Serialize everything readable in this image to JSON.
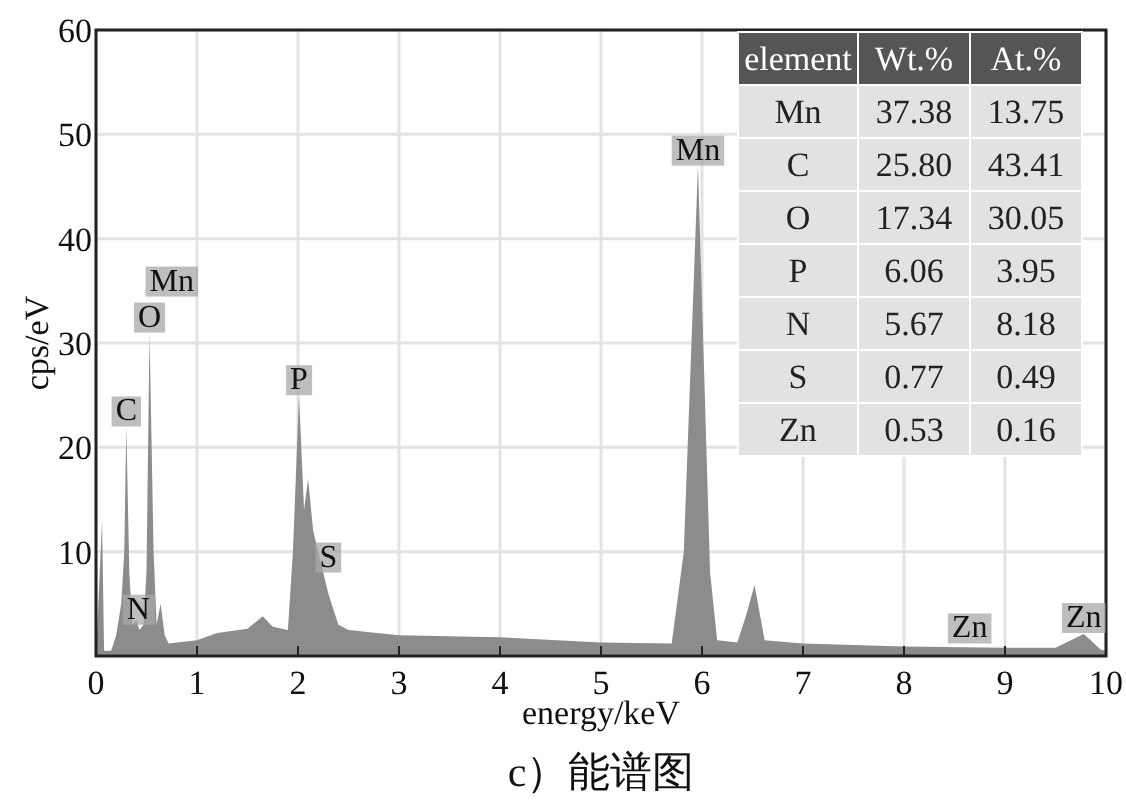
{
  "chart_data": {
    "type": "area",
    "title": "c）能谱图",
    "xlabel": "energy/keV",
    "ylabel": "cps/eV",
    "color": "#8c8c8c",
    "x": [
      0,
      0.06,
      0.08,
      0.15,
      0.2,
      0.25,
      0.28,
      0.3,
      0.33,
      0.36,
      0.4,
      0.43,
      0.47,
      0.5,
      0.53,
      0.57,
      0.6,
      0.64,
      0.68,
      0.72,
      1.0,
      1.2,
      1.5,
      1.65,
      1.75,
      1.9,
      1.95,
      2.01,
      2.06,
      2.1,
      2.15,
      2.3,
      2.4,
      2.5,
      3,
      4,
      5,
      5.7,
      5.82,
      5.96,
      6.08,
      6.15,
      6.35,
      6.44,
      6.52,
      6.62,
      7,
      8,
      9,
      9.5,
      9.78,
      9.95,
      10
    ],
    "values": [
      0,
      13,
      0.5,
      0.5,
      2,
      5,
      10,
      22,
      8,
      3,
      3.5,
      2.5,
      3,
      8,
      31,
      10,
      3,
      5,
      2,
      1.2,
      1.5,
      2.2,
      2.6,
      3.8,
      2.8,
      2.5,
      10,
      25,
      14,
      17,
      12,
      6,
      3,
      2.5,
      2,
      1.8,
      1.3,
      1.2,
      10,
      47,
      8,
      1.5,
      1.3,
      4,
      6.8,
      1.5,
      1.2,
      0.9,
      0.8,
      0.8,
      2.1,
      0.6,
      0.5
    ],
    "xlim": [
      0,
      10
    ],
    "ylim": [
      0,
      60
    ],
    "xticks": [
      0,
      1,
      2,
      3,
      4,
      5,
      6,
      7,
      8,
      9,
      10
    ],
    "yticks": [
      10,
      20,
      30,
      40,
      50,
      60
    ],
    "grid": true,
    "annotations": [
      {
        "text": "C",
        "x": 0.3,
        "y": 22
      },
      {
        "text": "N",
        "x": 0.42,
        "y": 3
      },
      {
        "text": "O",
        "x": 0.53,
        "y": 31
      },
      {
        "text": "Mn",
        "x": 0.53,
        "y": 31
      },
      {
        "text": "P",
        "x": 2.01,
        "y": 25
      },
      {
        "text": "S",
        "x": 2.3,
        "y": 8
      },
      {
        "text": "Mn",
        "x": 5.96,
        "y": 47
      },
      {
        "text": "Zn",
        "x": 8.65,
        "y": 1.2
      },
      {
        "text": "Zn",
        "x": 9.78,
        "y": 2.2
      },
      "element",
      "Wt.%",
      "At.%",
      "Mn",
      "37.38",
      "13.75",
      "C",
      "25.80",
      "43.41",
      "O",
      "17.34",
      "30.05",
      "P",
      "6.06",
      "3.95",
      "N",
      "5.67",
      "8.18",
      "S",
      "0.77",
      "0.49",
      "Zn",
      "0.53",
      "0.16"
    ]
  }
}
